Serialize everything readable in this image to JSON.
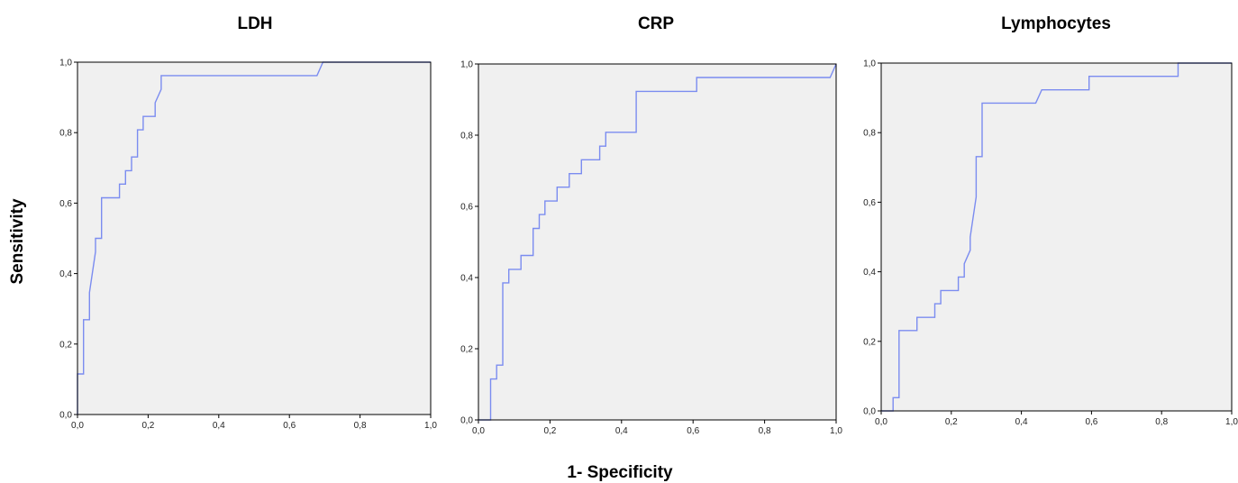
{
  "figure": {
    "ylabel": "Sensitivity",
    "xlabel": "1- Specificity"
  },
  "colors": {
    "curve": "#7b8cf0",
    "plot_background": "#f0f0f0",
    "axis": "#000000"
  },
  "chart_data": [
    {
      "type": "line",
      "title": "LDH",
      "xlim": [
        0,
        1
      ],
      "ylim": [
        0,
        1
      ],
      "grid": false,
      "xticks": [
        "0,0",
        "0,2",
        "0,4",
        "0,6",
        "0,8",
        "1,0"
      ],
      "yticks": [
        "0,0",
        "0,2",
        "0,4",
        "0,6",
        "0,8",
        "1,0"
      ],
      "series": [
        {
          "x": [
            0,
            0,
            0.017,
            0.017,
            0.034,
            0.034,
            0.034,
            0.051,
            0.051,
            0.051,
            0.068,
            0.068,
            0.068,
            0.119,
            0.119,
            0.136,
            0.136,
            0.153,
            0.153,
            0.17,
            0.17,
            0.186,
            0.186,
            0.22,
            0.22,
            0.237,
            0.237,
            0.678,
            0.695,
            1.0
          ],
          "y": [
            0,
            0.115,
            0.115,
            0.269,
            0.269,
            0.346,
            0.346,
            0.462,
            0.462,
            0.5,
            0.5,
            0.615,
            0.615,
            0.615,
            0.654,
            0.654,
            0.692,
            0.692,
            0.731,
            0.731,
            0.808,
            0.808,
            0.846,
            0.846,
            0.885,
            0.923,
            0.962,
            0.962,
            1.0,
            1.0
          ]
        }
      ]
    },
    {
      "type": "line",
      "title": "CRP",
      "xlim": [
        0,
        1
      ],
      "ylim": [
        0,
        1
      ],
      "grid": false,
      "xticks": [
        "0,0",
        "0,2",
        "0,4",
        "0,6",
        "0,8",
        "1,0"
      ],
      "yticks": [
        "0,0",
        "0,2",
        "0,4",
        "0,6",
        "0,8",
        "1,0"
      ],
      "series": [
        {
          "x": [
            0,
            0.034,
            0.034,
            0.051,
            0.051,
            0.068,
            0.068,
            0.085,
            0.085,
            0.119,
            0.119,
            0.153,
            0.153,
            0.17,
            0.17,
            0.186,
            0.186,
            0.22,
            0.22,
            0.254,
            0.254,
            0.288,
            0.288,
            0.339,
            0.339,
            0.356,
            0.356,
            0.441,
            0.441,
            0.61,
            0.61,
            0.983,
            1.0
          ],
          "y": [
            0,
            0,
            0.115,
            0.115,
            0.154,
            0.154,
            0.385,
            0.385,
            0.423,
            0.423,
            0.462,
            0.462,
            0.538,
            0.538,
            0.577,
            0.577,
            0.615,
            0.615,
            0.654,
            0.654,
            0.692,
            0.692,
            0.731,
            0.731,
            0.769,
            0.769,
            0.808,
            0.808,
            0.923,
            0.923,
            0.962,
            0.962,
            1.0
          ]
        }
      ]
    },
    {
      "type": "line",
      "title": "Lymphocytes",
      "xlim": [
        0,
        1
      ],
      "ylim": [
        0,
        1
      ],
      "grid": false,
      "xticks": [
        "0,0",
        "0,2",
        "0,4",
        "0,6",
        "0,8",
        "1,0"
      ],
      "yticks": [
        "0,0",
        "0,2",
        "0,4",
        "0,6",
        "0,8",
        "1,0"
      ],
      "series": [
        {
          "x": [
            0,
            0.017,
            0.034,
            0.034,
            0.051,
            0.051,
            0.102,
            0.102,
            0.153,
            0.153,
            0.17,
            0.17,
            0.22,
            0.22,
            0.237,
            0.237,
            0.254,
            0.254,
            0.271,
            0.271,
            0.288,
            0.288,
            0.441,
            0.458,
            0.593,
            0.593,
            0.847,
            0.847,
            1.0
          ],
          "y": [
            0,
            0,
            0,
            0.038,
            0.038,
            0.231,
            0.231,
            0.269,
            0.269,
            0.308,
            0.308,
            0.346,
            0.346,
            0.385,
            0.385,
            0.423,
            0.462,
            0.5,
            0.615,
            0.731,
            0.731,
            0.885,
            0.885,
            0.923,
            0.923,
            0.962,
            0.962,
            1.0,
            1.0
          ]
        }
      ]
    }
  ]
}
